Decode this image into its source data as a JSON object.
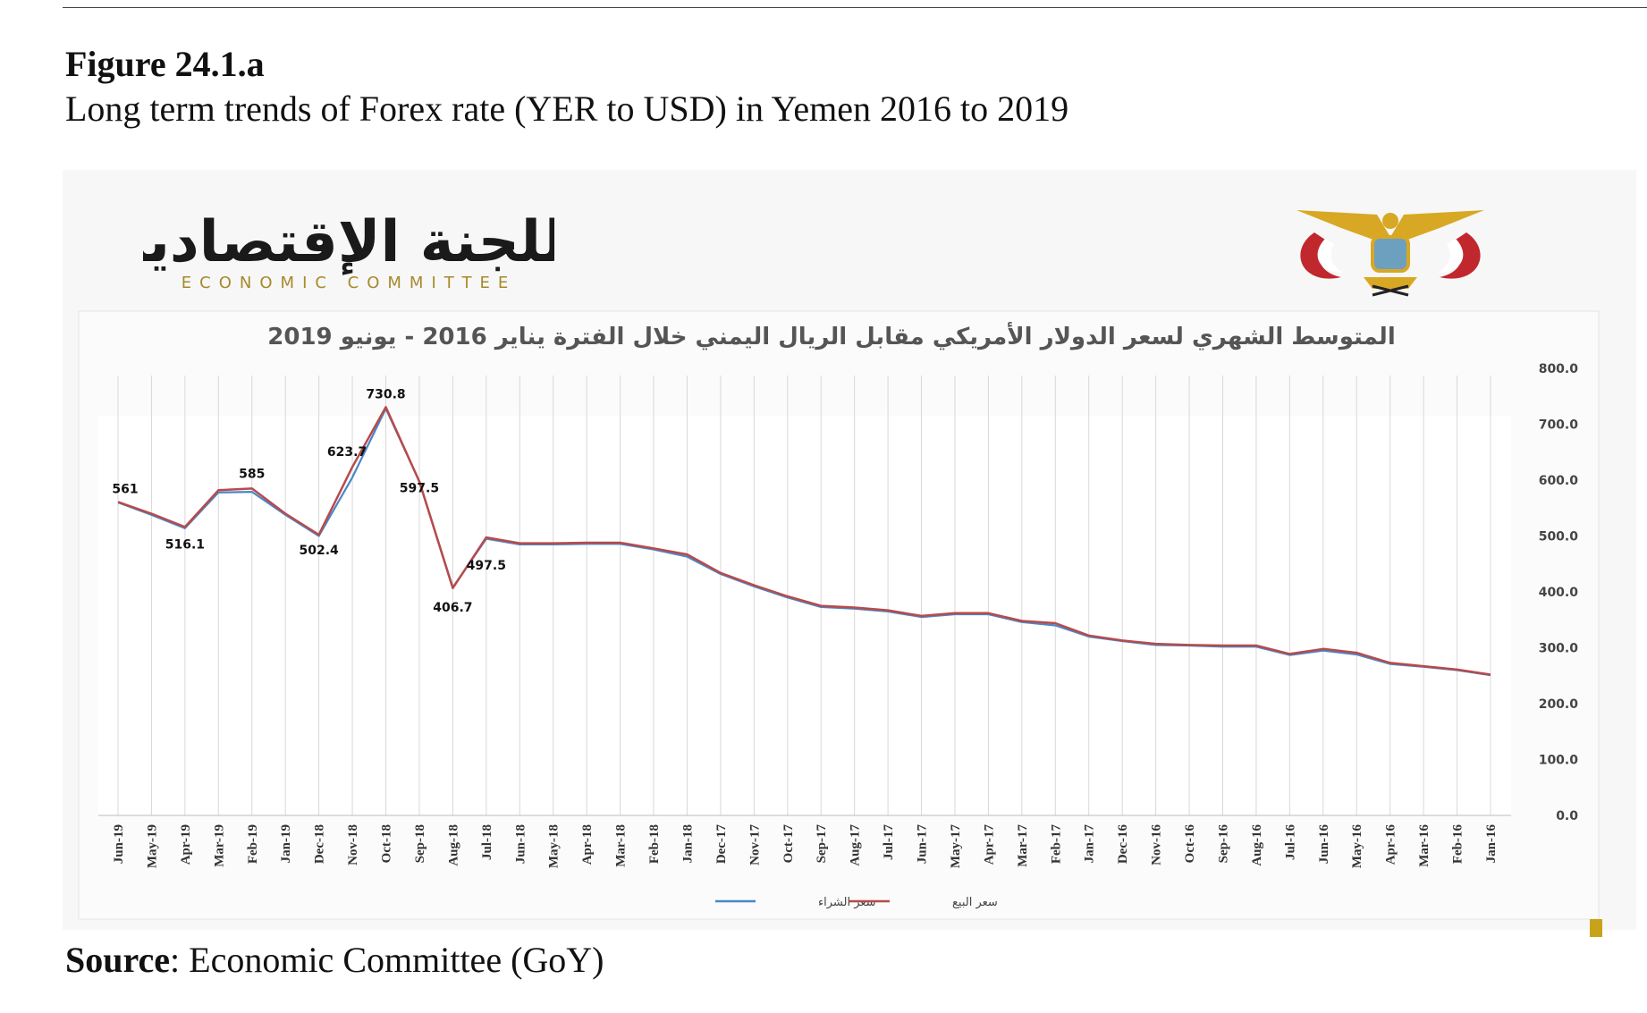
{
  "header": {
    "figure_number": "Figure 24.1.a",
    "figure_title": "Long term trends of Forex rate (YER to USD) in Yemen 2016 to 2019"
  },
  "footer": {
    "source_label": "Source",
    "source_text": ": Economic Committee (GoY)"
  },
  "logo": {
    "arabic": "اللجنة الإقتصادية",
    "english": "ECONOMIC COMMITTEE"
  },
  "colors": {
    "buy_series": "#4a86c8",
    "sell_series": "#b84a4a",
    "logo_gold": "#a58a2a",
    "emblem_red": "#c0282d",
    "emblem_gold": "#d8a824"
  },
  "chart_data": {
    "type": "line",
    "title": "المتوسط الشهري لسعر الدولار الأمريكي مقابل الريال اليمني خلال الفترة يناير 2016 - يونيو 2019",
    "ylim": [
      0,
      800
    ],
    "y_ticks": [
      "0.0",
      "100.0",
      "200.0",
      "300.0",
      "400.0",
      "500.0",
      "600.0",
      "700.0",
      "800.0"
    ],
    "y_axis_side": "right",
    "x_direction": "reversed (newest on left)",
    "grid": "vertical lines",
    "legend_position": "bottom",
    "categories": [
      "Jun-19",
      "May-19",
      "Apr-19",
      "Mar-19",
      "Feb-19",
      "Jan-19",
      "Dec-18",
      "Nov-18",
      "Oct-18",
      "Sep-18",
      "Aug-18",
      "Jul-18",
      "Jun-18",
      "May-18",
      "Apr-18",
      "Mar-18",
      "Feb-18",
      "Jan-18",
      "Dec-17",
      "Nov-17",
      "Oct-17",
      "Sep-17",
      "Aug-17",
      "Jul-17",
      "Jun-17",
      "May-17",
      "Apr-17",
      "Mar-17",
      "Feb-17",
      "Jan-17",
      "Dec-16",
      "Nov-16",
      "Oct-16",
      "Sep-16",
      "Aug-16",
      "Jul-16",
      "Jun-16",
      "May-16",
      "Apr-16",
      "Mar-16",
      "Feb-16",
      "Jan-16"
    ],
    "series": [
      {
        "name": "سعر الشراء",
        "values": [
          560,
          538,
          514,
          578,
          579,
          538,
          500,
          605,
          728,
          598,
          408,
          495,
          485,
          485,
          486,
          486,
          476,
          463,
          432,
          410,
          390,
          373,
          370,
          365,
          355,
          360,
          360,
          346,
          340,
          320,
          312,
          305,
          304,
          302,
          302,
          287,
          295,
          288,
          271,
          266,
          260,
          251
        ]
      },
      {
        "name": "سعر البيع",
        "values": [
          561,
          540,
          516.1,
          582,
          585,
          540,
          502.4,
          623.7,
          730.8,
          597.5,
          406.7,
          497.5,
          487,
          487,
          488,
          488,
          478,
          467,
          434,
          412,
          392,
          375,
          372,
          367,
          357,
          362,
          362,
          348,
          344,
          322,
          313,
          307,
          305,
          304,
          304,
          289,
          298,
          291,
          273,
          267,
          261,
          252
        ]
      }
    ],
    "data_labels": [
      {
        "category": "Jun-19",
        "text": "561"
      },
      {
        "category": "Apr-19",
        "text": "516.1"
      },
      {
        "category": "Feb-19",
        "text": "585"
      },
      {
        "category": "Dec-18",
        "text": "502.4"
      },
      {
        "category": "Nov-18",
        "text": "623.7"
      },
      {
        "category": "Oct-18",
        "text": "730.8"
      },
      {
        "category": "Sep-18",
        "text": "597.5"
      },
      {
        "category": "Aug-18",
        "text": "406.7"
      },
      {
        "category": "Jul-18",
        "text": "497.5"
      }
    ]
  }
}
